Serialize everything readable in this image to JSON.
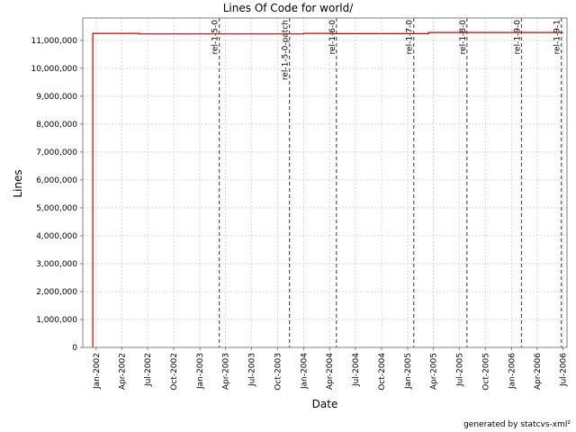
{
  "chart_data": {
    "type": "line",
    "title": "Lines Of Code for world/",
    "xlabel": "Date",
    "ylabel": "Lines",
    "ylim": [
      0,
      11800000
    ],
    "xlim": [
      "2001-11-15",
      "2006-07-15"
    ],
    "grid": true,
    "line_color": "#cc0000",
    "marker_color": "#555555",
    "y_ticks": [
      {
        "value": 0,
        "label": "0"
      },
      {
        "value": 1000000,
        "label": "1,000,000"
      },
      {
        "value": 2000000,
        "label": "2,000,000"
      },
      {
        "value": 3000000,
        "label": "3,000,000"
      },
      {
        "value": 4000000,
        "label": "4,000,000"
      },
      {
        "value": 5000000,
        "label": "5,000,000"
      },
      {
        "value": 6000000,
        "label": "6,000,000"
      },
      {
        "value": 7000000,
        "label": "7,000,000"
      },
      {
        "value": 8000000,
        "label": "8,000,000"
      },
      {
        "value": 9000000,
        "label": "9,000,000"
      },
      {
        "value": 10000000,
        "label": "10,000,000"
      },
      {
        "value": 11000000,
        "label": "11,000,000"
      }
    ],
    "x_ticks": [
      {
        "date": "2002-01-01",
        "label": "Jan-2002"
      },
      {
        "date": "2002-04-01",
        "label": "Apr-2002"
      },
      {
        "date": "2002-07-01",
        "label": "Jul-2002"
      },
      {
        "date": "2002-10-01",
        "label": "Oct-2002"
      },
      {
        "date": "2003-01-01",
        "label": "Jan-2003"
      },
      {
        "date": "2003-04-01",
        "label": "Apr-2003"
      },
      {
        "date": "2003-07-01",
        "label": "Jul-2003"
      },
      {
        "date": "2003-10-01",
        "label": "Oct-2003"
      },
      {
        "date": "2004-01-01",
        "label": "Jan-2004"
      },
      {
        "date": "2004-04-01",
        "label": "Apr-2004"
      },
      {
        "date": "2004-07-01",
        "label": "Jul-2004"
      },
      {
        "date": "2004-10-01",
        "label": "Oct-2004"
      },
      {
        "date": "2005-01-01",
        "label": "Jan-2005"
      },
      {
        "date": "2005-04-01",
        "label": "Apr-2005"
      },
      {
        "date": "2005-07-01",
        "label": "Jul-2005"
      },
      {
        "date": "2005-10-01",
        "label": "Oct-2005"
      },
      {
        "date": "2006-01-01",
        "label": "Jan-2006"
      },
      {
        "date": "2006-04-01",
        "label": "Apr-2006"
      },
      {
        "date": "2006-07-01",
        "label": "Jul-2006"
      }
    ],
    "series": [
      {
        "points": [
          {
            "x": "2001-12-20",
            "y": 0
          },
          {
            "x": "2001-12-20",
            "y": 11250000
          },
          {
            "x": "2002-06-01",
            "y": 11250000
          },
          {
            "x": "2002-06-01",
            "y": 11230000
          },
          {
            "x": "2004-01-01",
            "y": 11230000
          },
          {
            "x": "2004-01-01",
            "y": 11250000
          },
          {
            "x": "2004-04-01",
            "y": 11250000
          },
          {
            "x": "2004-04-01",
            "y": 11240000
          },
          {
            "x": "2005-03-15",
            "y": 11240000
          },
          {
            "x": "2005-03-15",
            "y": 11280000
          },
          {
            "x": "2006-07-01",
            "y": 11280000
          }
        ]
      }
    ],
    "markers": [
      {
        "date": "2003-03-10",
        "label": "rel-1-5-0"
      },
      {
        "date": "2003-11-12",
        "label": "rel-1-5-0-patch"
      },
      {
        "date": "2004-04-25",
        "label": "rel-1-6-0"
      },
      {
        "date": "2005-01-22",
        "label": "rel-1-7-0"
      },
      {
        "date": "2005-07-28",
        "label": "rel-1-8-0"
      },
      {
        "date": "2006-02-05",
        "label": "rel-1-9-0"
      },
      {
        "date": "2006-06-25",
        "label": "rel-1-9-1"
      }
    ]
  },
  "footer": "generated by statcvs-xml²"
}
